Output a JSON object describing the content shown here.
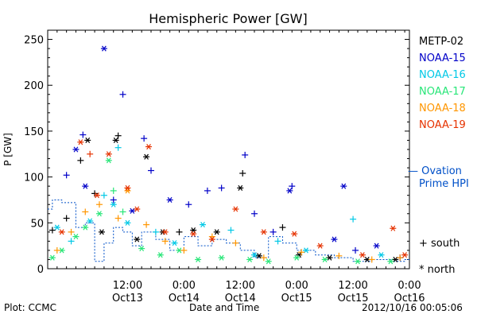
{
  "footer": {
    "left": "Plot: CCMC",
    "center": "Date and Time",
    "right": "2012/10/16 00:05:06"
  },
  "chart_data": {
    "type": "scatter",
    "title": "Hemispheric Power [GW]",
    "ylabel": "P [GW]",
    "xlabel": "Date and Time",
    "ylim": [
      0,
      260
    ],
    "xlim": [
      "2012-10-12 19:00",
      "2012-10-16 00:00"
    ],
    "yticks": [
      0,
      50,
      100,
      150,
      200,
      250
    ],
    "xticks": [
      {
        "time": "2012-10-13 12:00",
        "line1": "12:00",
        "line2": "Oct13"
      },
      {
        "time": "2012-10-14 00:00",
        "line1": "0:00",
        "line2": "Oct14"
      },
      {
        "time": "2012-10-14 12:00",
        "line1": "12:00",
        "line2": "Oct14"
      },
      {
        "time": "2012-10-15 00:00",
        "line1": "0:00",
        "line2": "Oct15"
      },
      {
        "time": "2012-10-15 12:00",
        "line1": "12:00",
        "line2": "Oct15"
      },
      {
        "time": "2012-10-16 00:00",
        "line1": "0:00",
        "line2": "Oct16"
      }
    ],
    "legend": {
      "placement": "right",
      "markers": {
        "south": "+ south",
        "north": "* north"
      },
      "ovation_label_1": "— Ovation",
      "ovation_label_2": "Prime HPI"
    },
    "series": [
      {
        "name": "METP-02",
        "color": "#000000",
        "points": [
          [
            "2012-10-12 20:00",
            42,
            "+"
          ],
          [
            "2012-10-12 23:00",
            55,
            "+"
          ],
          [
            "2012-10-13 02:00",
            118,
            "+"
          ],
          [
            "2012-10-13 03:30",
            140,
            "*"
          ],
          [
            "2012-10-13 05:00",
            82,
            "+"
          ],
          [
            "2012-10-13 06:30",
            40,
            "*"
          ],
          [
            "2012-10-13 10:00",
            145,
            "+"
          ],
          [
            "2012-10-13 09:30",
            140,
            "*"
          ],
          [
            "2012-10-13 14:00",
            32,
            "*"
          ],
          [
            "2012-10-13 16:00",
            122,
            "*"
          ],
          [
            "2012-10-13 19:30",
            40,
            "*"
          ],
          [
            "2012-10-13 23:00",
            40,
            "+"
          ],
          [
            "2012-10-14 02:00",
            42,
            "*"
          ],
          [
            "2012-10-14 07:00",
            40,
            "*"
          ],
          [
            "2012-10-14 12:00",
            88,
            "*"
          ],
          [
            "2012-10-14 12:30",
            104,
            "+"
          ],
          [
            "2012-10-14 16:00",
            14,
            "*"
          ],
          [
            "2012-10-14 21:00",
            45,
            "+"
          ],
          [
            "2012-10-15 00:30",
            15,
            "*"
          ],
          [
            "2012-10-15 07:00",
            12,
            "*"
          ],
          [
            "2012-10-15 15:00",
            10,
            "*"
          ],
          [
            "2012-10-15 21:00",
            10,
            "*"
          ]
        ]
      },
      {
        "name": "NOAA-15",
        "color": "#0000c8",
        "points": [
          [
            "2012-10-12 23:00",
            102,
            "+"
          ],
          [
            "2012-10-13 01:00",
            130,
            "*"
          ],
          [
            "2012-10-13 02:30",
            146,
            "+"
          ],
          [
            "2012-10-13 03:00",
            90,
            "*"
          ],
          [
            "2012-10-13 07:00",
            240,
            "*"
          ],
          [
            "2012-10-13 09:00",
            75,
            "+"
          ],
          [
            "2012-10-13 11:00",
            190,
            "+"
          ],
          [
            "2012-10-13 13:00",
            63,
            "*"
          ],
          [
            "2012-10-13 15:30",
            142,
            "+"
          ],
          [
            "2012-10-13 17:00",
            107,
            "+"
          ],
          [
            "2012-10-13 21:00",
            75,
            "*"
          ],
          [
            "2012-10-14 01:00",
            70,
            "+"
          ],
          [
            "2012-10-14 05:00",
            85,
            "+"
          ],
          [
            "2012-10-14 08:00",
            88,
            "+"
          ],
          [
            "2012-10-14 13:00",
            124,
            "+"
          ],
          [
            "2012-10-14 15:00",
            60,
            "+"
          ],
          [
            "2012-10-14 19:00",
            40,
            "+"
          ],
          [
            "2012-10-14 22:30",
            85,
            "*"
          ],
          [
            "2012-10-14 23:00",
            90,
            "+"
          ],
          [
            "2012-10-15 08:00",
            32,
            "*"
          ],
          [
            "2012-10-15 10:00",
            90,
            "*"
          ],
          [
            "2012-10-15 12:30",
            20,
            "+"
          ],
          [
            "2012-10-15 17:00",
            25,
            "*"
          ],
          [
            "2012-10-15 22:00",
            12,
            "+"
          ]
        ]
      },
      {
        "name": "NOAA-16",
        "color": "#00c8e6",
        "points": [
          [
            "2012-10-12 21:00",
            45,
            "*"
          ],
          [
            "2012-10-13 00:00",
            30,
            "+"
          ],
          [
            "2012-10-13 04:00",
            52,
            "*"
          ],
          [
            "2012-10-13 07:00",
            80,
            "+"
          ],
          [
            "2012-10-13 09:00",
            70,
            "*"
          ],
          [
            "2012-10-13 10:00",
            132,
            "+"
          ],
          [
            "2012-10-13 12:00",
            50,
            "*"
          ],
          [
            "2012-10-13 18:00",
            40,
            "+"
          ],
          [
            "2012-10-13 22:00",
            28,
            "*"
          ],
          [
            "2012-10-14 04:00",
            48,
            "*"
          ],
          [
            "2012-10-14 10:00",
            42,
            "+"
          ],
          [
            "2012-10-14 15:00",
            15,
            "*"
          ],
          [
            "2012-10-14 20:00",
            30,
            "+"
          ],
          [
            "2012-10-15 02:00",
            20,
            "*"
          ],
          [
            "2012-10-15 12:00",
            54,
            "+"
          ],
          [
            "2012-10-15 18:00",
            15,
            "*"
          ]
        ]
      },
      {
        "name": "NOAA-17",
        "color": "#28e678",
        "points": [
          [
            "2012-10-12 20:00",
            12,
            "*"
          ],
          [
            "2012-10-12 22:00",
            20,
            "*"
          ],
          [
            "2012-10-13 01:00",
            35,
            "*"
          ],
          [
            "2012-10-13 03:00",
            45,
            "*"
          ],
          [
            "2012-10-13 06:00",
            60,
            "*"
          ],
          [
            "2012-10-13 08:00",
            118,
            "*"
          ],
          [
            "2012-10-13 09:00",
            85,
            "+"
          ],
          [
            "2012-10-13 11:00",
            62,
            "+"
          ],
          [
            "2012-10-13 15:00",
            22,
            "*"
          ],
          [
            "2012-10-13 19:00",
            15,
            "*"
          ],
          [
            "2012-10-13 23:00",
            20,
            "*"
          ],
          [
            "2012-10-14 03:00",
            10,
            "*"
          ],
          [
            "2012-10-14 08:00",
            12,
            "*"
          ],
          [
            "2012-10-14 14:00",
            10,
            "*"
          ],
          [
            "2012-10-14 18:00",
            8,
            "*"
          ],
          [
            "2012-10-15 00:00",
            12,
            "*"
          ],
          [
            "2012-10-15 06:00",
            10,
            "*"
          ],
          [
            "2012-10-15 13:00",
            8,
            "*"
          ],
          [
            "2012-10-15 20:00",
            8,
            "*"
          ]
        ]
      },
      {
        "name": "NOAA-18",
        "color": "#ff9600",
        "points": [
          [
            "2012-10-12 21:00",
            20,
            "+"
          ],
          [
            "2012-10-13 00:00",
            40,
            "+"
          ],
          [
            "2012-10-13 03:00",
            62,
            "+"
          ],
          [
            "2012-10-13 06:00",
            70,
            "+"
          ],
          [
            "2012-10-13 10:00",
            55,
            "+"
          ],
          [
            "2012-10-13 12:00",
            85,
            "*"
          ],
          [
            "2012-10-13 16:00",
            48,
            "+"
          ],
          [
            "2012-10-13 20:00",
            30,
            "+"
          ],
          [
            "2012-10-14 00:00",
            20,
            "+"
          ],
          [
            "2012-10-14 06:00",
            35,
            "+"
          ],
          [
            "2012-10-14 11:00",
            28,
            "+"
          ],
          [
            "2012-10-14 17:00",
            12,
            "+"
          ],
          [
            "2012-10-15 01:00",
            18,
            "+"
          ],
          [
            "2012-10-15 09:00",
            14,
            "+"
          ],
          [
            "2012-10-15 16:00",
            10,
            "+"
          ],
          [
            "2012-10-15 22:00",
            12,
            "+"
          ]
        ]
      },
      {
        "name": "NOAA-19",
        "color": "#e63200",
        "points": [
          [
            "2012-10-12 22:00",
            40,
            "*"
          ],
          [
            "2012-10-13 02:00",
            138,
            "*"
          ],
          [
            "2012-10-13 04:00",
            125,
            "+"
          ],
          [
            "2012-10-13 05:30",
            80,
            "*"
          ],
          [
            "2012-10-13 08:00",
            125,
            "*"
          ],
          [
            "2012-10-13 12:00",
            88,
            "*"
          ],
          [
            "2012-10-13 14:00",
            65,
            "*"
          ],
          [
            "2012-10-13 16:30",
            133,
            "*"
          ],
          [
            "2012-10-13 20:00",
            40,
            "*"
          ],
          [
            "2012-10-14 02:00",
            38,
            "*"
          ],
          [
            "2012-10-14 06:00",
            32,
            "*"
          ],
          [
            "2012-10-14 11:00",
            65,
            "*"
          ],
          [
            "2012-10-14 17:00",
            40,
            "*"
          ],
          [
            "2012-10-14 23:30",
            38,
            "*"
          ],
          [
            "2012-10-15 05:00",
            25,
            "*"
          ],
          [
            "2012-10-15 14:00",
            15,
            "*"
          ],
          [
            "2012-10-15 20:30",
            44,
            "*"
          ],
          [
            "2012-10-15 23:00",
            15,
            "*"
          ]
        ]
      }
    ],
    "ovation_hpi": {
      "name": "Ovation Prime HPI",
      "color": "#0050c8",
      "points": [
        [
          "2012-10-12 19:00",
          65
        ],
        [
          "2012-10-12 20:00",
          75
        ],
        [
          "2012-10-12 22:00",
          72
        ],
        [
          "2012-10-13 01:00",
          45
        ],
        [
          "2012-10-13 03:00",
          50
        ],
        [
          "2012-10-13 05:00",
          8
        ],
        [
          "2012-10-13 07:00",
          28
        ],
        [
          "2012-10-13 09:00",
          45
        ],
        [
          "2012-10-13 11:00",
          40
        ],
        [
          "2012-10-13 13:00",
          25
        ],
        [
          "2012-10-13 15:00",
          40
        ],
        [
          "2012-10-13 18:00",
          32
        ],
        [
          "2012-10-13 21:00",
          20
        ],
        [
          "2012-10-14 00:00",
          35
        ],
        [
          "2012-10-14 03:00",
          25
        ],
        [
          "2012-10-14 06:00",
          32
        ],
        [
          "2012-10-14 09:00",
          28
        ],
        [
          "2012-10-14 12:00",
          20
        ],
        [
          "2012-10-14 15:00",
          12
        ],
        [
          "2012-10-14 18:00",
          35
        ],
        [
          "2012-10-14 21:00",
          28
        ],
        [
          "2012-10-15 00:00",
          20
        ],
        [
          "2012-10-15 04:00",
          15
        ],
        [
          "2012-10-15 08:00",
          12
        ],
        [
          "2012-10-15 12:00",
          8
        ],
        [
          "2012-10-15 16:00",
          10
        ],
        [
          "2012-10-15 20:00",
          8
        ],
        [
          "2012-10-15 23:00",
          10
        ]
      ]
    }
  }
}
